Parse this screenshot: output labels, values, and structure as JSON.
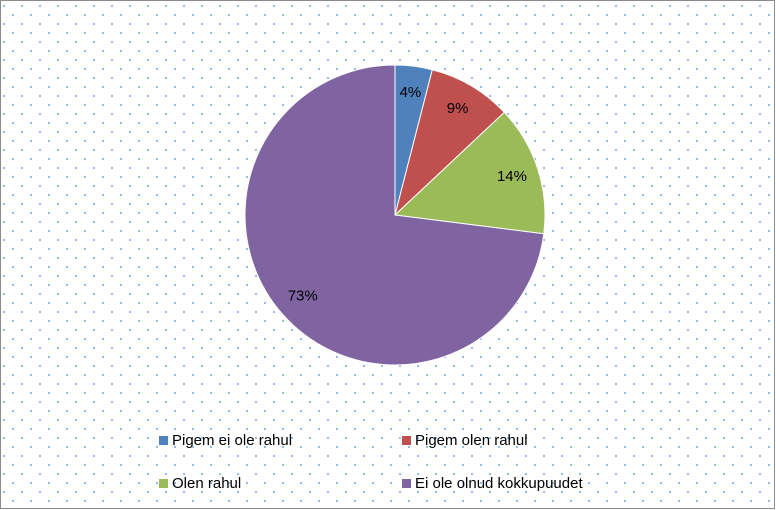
{
  "chart_data": {
    "type": "pie",
    "categories": [
      "Pigem ei ole rahul",
      "Pigem olen rahul",
      "Olen rahul",
      "Ei ole olnud kokkupuudet"
    ],
    "values": [
      4,
      9,
      14,
      73
    ],
    "value_labels": [
      "4%",
      "9%",
      "14%",
      "73%"
    ],
    "colors": [
      "#4f81bd",
      "#c0504d",
      "#9bbb59",
      "#8064a2"
    ],
    "legend": "bottom"
  }
}
